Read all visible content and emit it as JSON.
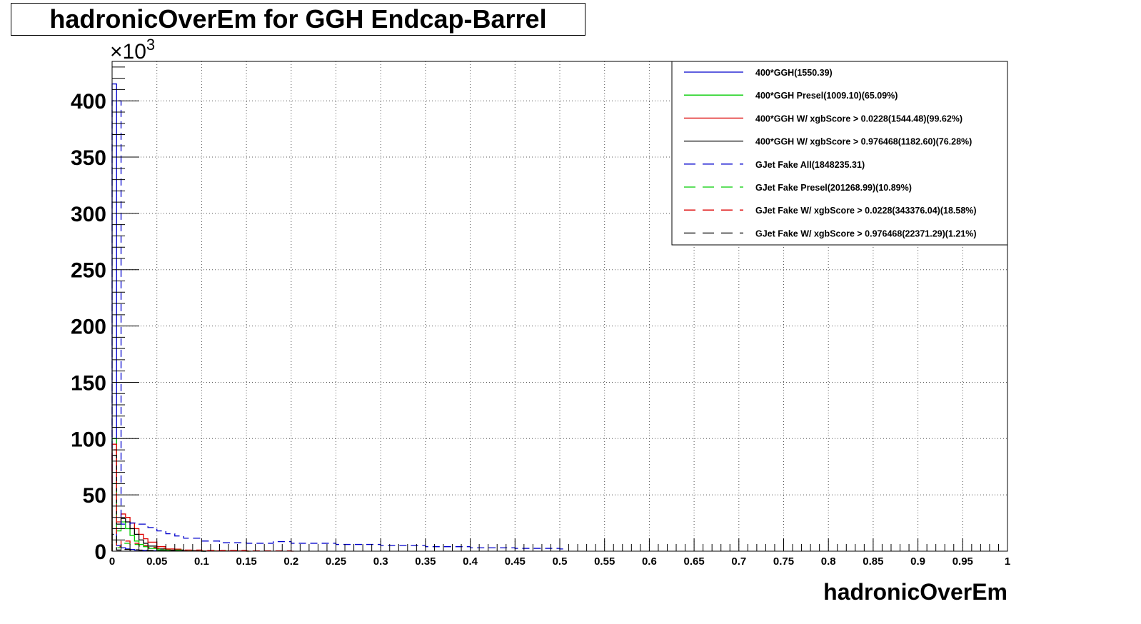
{
  "chart_data": {
    "type": "line",
    "title": "hadronicOverEm for GGH Endcap-Barrel",
    "xlabel": "hadronicOverEm",
    "ylabel": "",
    "y_multiplier_label": "×10³",
    "y_multiplier_base": "×10",
    "y_multiplier_exp": "3",
    "xlim": [
      0,
      1
    ],
    "ylim": [
      0,
      435000
    ],
    "grid": true,
    "legend_position": "top-right",
    "x_ticks": [
      0,
      0.05,
      0.1,
      0.15,
      0.2,
      0.25,
      0.3,
      0.35,
      0.4,
      0.45,
      0.5,
      0.55,
      0.6,
      0.65,
      0.7,
      0.75,
      0.8,
      0.85,
      0.9,
      0.95,
      1
    ],
    "x_tick_labels": [
      "0",
      "0.05",
      "0.1",
      "0.15",
      "0.2",
      "0.25",
      "0.3",
      "0.35",
      "0.4",
      "0.45",
      "0.5",
      "0.55",
      "0.6",
      "0.65",
      "0.7",
      "0.75",
      "0.8",
      "0.85",
      "0.9",
      "0.95",
      "1"
    ],
    "y_ticks": [
      0,
      50000,
      100000,
      150000,
      200000,
      250000,
      300000,
      350000,
      400000
    ],
    "y_tick_labels": [
      "0",
      "50",
      "100",
      "150",
      "200",
      "250",
      "300",
      "350",
      "400"
    ],
    "series": [
      {
        "name": "400*GGH(1550.39)",
        "color": "#0000cc",
        "dash": "solid",
        "x": [
          0.0,
          0.005,
          0.01,
          0.015,
          0.02,
          0.025,
          0.03,
          0.035,
          0.04,
          0.05,
          0.06,
          0.08,
          0.1
        ],
        "y": [
          415000,
          5000,
          3000,
          2000,
          1500,
          1000,
          800,
          600,
          400,
          300,
          200,
          100,
          0
        ]
      },
      {
        "name": "400*GGH Presel(1009.10)(65.09%)",
        "color": "#00cc00",
        "dash": "solid",
        "x": [
          0.0,
          0.005,
          0.01,
          0.015,
          0.02,
          0.025,
          0.03,
          0.035,
          0.04,
          0.05,
          0.06,
          0.08,
          0.1
        ],
        "y": [
          100000,
          18000,
          26000,
          20000,
          14000,
          9000,
          6000,
          4000,
          2500,
          1000,
          500,
          200,
          0
        ]
      },
      {
        "name": "400*GGH W/ xgbScore > 0.0228(1544.48)(99.62%)",
        "color": "#dd0000",
        "dash": "solid",
        "x": [
          0.0,
          0.005,
          0.01,
          0.015,
          0.02,
          0.025,
          0.03,
          0.035,
          0.04,
          0.05,
          0.06,
          0.07,
          0.08,
          0.1,
          0.15
        ],
        "y": [
          95000,
          26000,
          33000,
          30000,
          25000,
          20000,
          15000,
          11000,
          8000,
          4000,
          2000,
          1000,
          500,
          200,
          0
        ]
      },
      {
        "name": "400*GGH W/ xgbScore > 0.976468(1182.60)(76.28%)",
        "color": "#000000",
        "dash": "solid",
        "x": [
          0.0,
          0.005,
          0.01,
          0.015,
          0.02,
          0.025,
          0.03,
          0.035,
          0.04,
          0.05,
          0.06,
          0.08,
          0.1
        ],
        "y": [
          85000,
          24000,
          29000,
          26000,
          20000,
          15000,
          10000,
          7000,
          4500,
          2000,
          900,
          300,
          0
        ]
      },
      {
        "name": "GJet Fake All(1848235.31)",
        "color": "#0000cc",
        "dash": "dashed",
        "x": [
          0.0,
          0.01,
          0.02,
          0.03,
          0.04,
          0.05,
          0.06,
          0.07,
          0.08,
          0.1,
          0.12,
          0.15,
          0.18,
          0.2,
          0.25,
          0.3,
          0.35,
          0.4,
          0.45,
          0.5
        ],
        "y": [
          400000,
          24000,
          25000,
          24000,
          21000,
          18000,
          15500,
          13500,
          11500,
          9000,
          7500,
          7000,
          8500,
          7000,
          6000,
          5000,
          4000,
          3000,
          2500,
          2000
        ]
      },
      {
        "name": "GJet Fake Presel(201268.99)(10.89%)",
        "color": "#00cc00",
        "dash": "dashed",
        "x": [
          0.0,
          0.005,
          0.01,
          0.02,
          0.03,
          0.04,
          0.05,
          0.06,
          0.08,
          0.1,
          0.15
        ],
        "y": [
          60000,
          3000,
          7000,
          6000,
          4500,
          3000,
          2000,
          1200,
          600,
          300,
          0
        ]
      },
      {
        "name": "GJet Fake W/ xgbScore > 0.0228(343376.04)(18.58%)",
        "color": "#dd0000",
        "dash": "dashed",
        "x": [
          0.0,
          0.005,
          0.01,
          0.02,
          0.03,
          0.04,
          0.05,
          0.06,
          0.08,
          0.1,
          0.15,
          0.2
        ],
        "y": [
          90000,
          4000,
          9000,
          7000,
          5000,
          3500,
          2500,
          1800,
          1000,
          600,
          300,
          0
        ]
      },
      {
        "name": "GJet Fake W/ xgbScore > 0.976468(22371.29)(1.21%)",
        "color": "#000000",
        "dash": "dashed",
        "x": [
          0.0,
          0.005,
          0.01,
          0.02,
          0.03,
          0.04,
          0.05,
          0.06,
          0.08,
          0.1
        ],
        "y": [
          15000,
          1000,
          1500,
          1200,
          900,
          600,
          400,
          300,
          150,
          0
        ]
      }
    ]
  }
}
